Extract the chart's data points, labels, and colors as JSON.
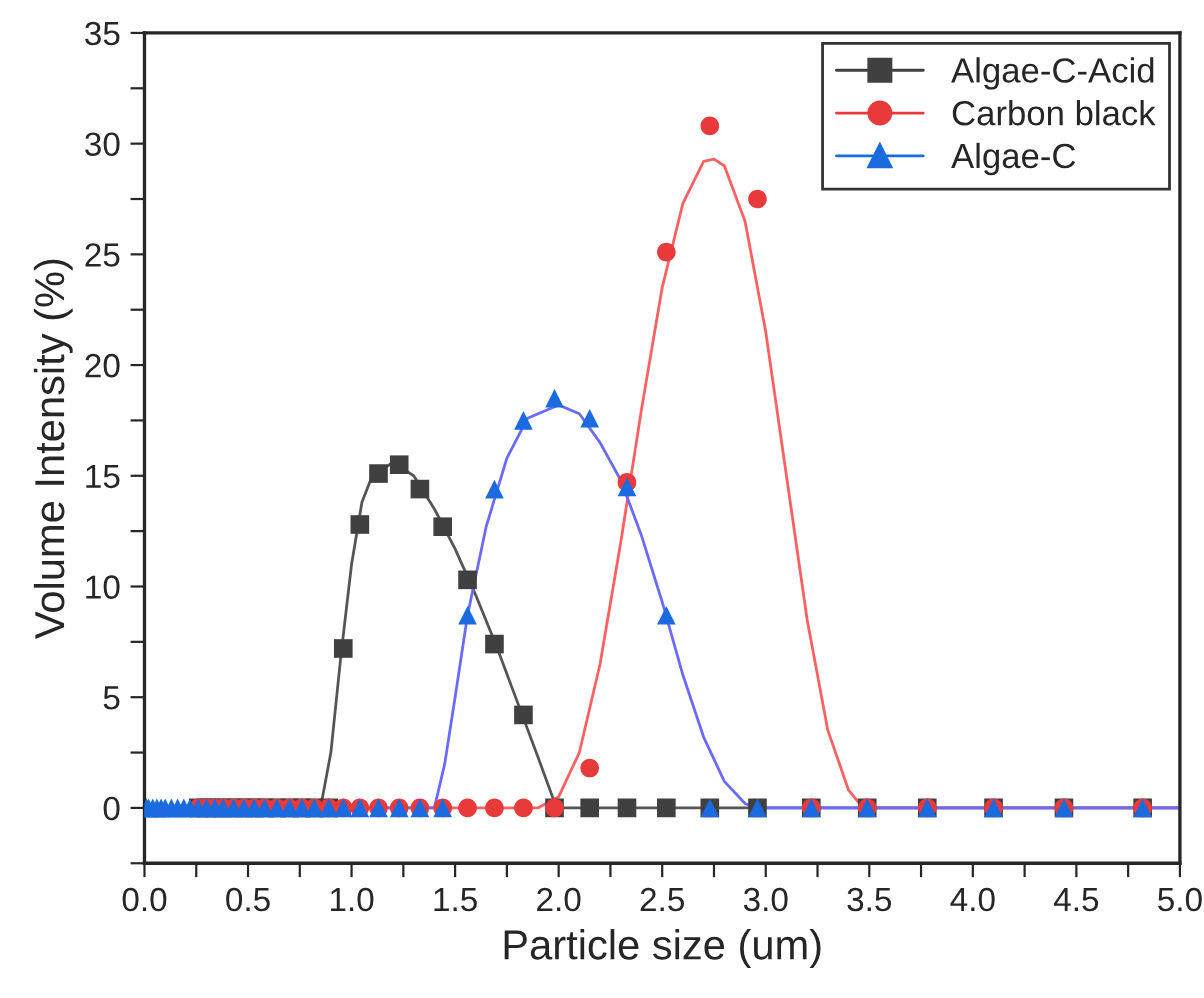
{
  "chart_data": {
    "type": "scatter",
    "xlabel": "Particle size (um)",
    "ylabel": "Volume Intensity (%)",
    "xlim": [
      0,
      5
    ],
    "ylim": [
      -2.5,
      35
    ],
    "xticks": [
      {
        "value": 0,
        "label": "0.0"
      },
      {
        "value": 0.25,
        "label": null
      },
      {
        "value": 0.5,
        "label": "0.5"
      },
      {
        "value": 0.75,
        "label": null
      },
      {
        "value": 1,
        "label": "1.0"
      },
      {
        "value": 1.25,
        "label": null
      },
      {
        "value": 1.5,
        "label": "1.5"
      },
      {
        "value": 1.75,
        "label": null
      },
      {
        "value": 2,
        "label": "2.0"
      },
      {
        "value": 2.25,
        "label": null
      },
      {
        "value": 2.5,
        "label": "2.5"
      },
      {
        "value": 2.75,
        "label": null
      },
      {
        "value": 3,
        "label": "3.0"
      },
      {
        "value": 3.25,
        "label": null
      },
      {
        "value": 3.5,
        "label": "3.5"
      },
      {
        "value": 3.75,
        "label": null
      },
      {
        "value": 4,
        "label": "4.0"
      },
      {
        "value": 4.25,
        "label": null
      },
      {
        "value": 4.5,
        "label": "4.5"
      },
      {
        "value": 4.75,
        "label": null
      },
      {
        "value": 5,
        "label": "5.0"
      }
    ],
    "yticks": [
      {
        "value": -2.5,
        "label": null
      },
      0,
      {
        "value": 2.5,
        "label": null
      },
      5,
      {
        "value": 7.5,
        "label": null
      },
      10,
      {
        "value": 12.5,
        "label": null
      },
      15,
      {
        "value": 17.5,
        "label": null
      },
      20,
      {
        "value": 22.5,
        "label": null
      },
      25,
      {
        "value": 27.5,
        "label": null
      },
      30,
      {
        "value": 32.5,
        "label": null
      },
      35
    ],
    "grid": false,
    "legend": "top right",
    "series": [
      {
        "type": "line",
        "color": "#555555",
        "x": [
          0,
          0.85,
          0.9,
          0.95,
          1.0,
          1.05,
          1.1,
          1.2,
          1.3,
          1.4,
          1.5,
          1.6,
          1.7,
          1.8,
          1.9,
          1.97,
          2.0,
          5.0
        ],
        "values": [
          0,
          0,
          2.5,
          7,
          11,
          13.8,
          15.0,
          15.6,
          15.0,
          13.5,
          11.7,
          9.6,
          7.3,
          4.8,
          2.3,
          0.5,
          0,
          0
        ]
      },
      {
        "type": "line",
        "color": "#ff6060",
        "x": [
          0,
          1.9,
          2.0,
          2.1,
          2.2,
          2.3,
          2.4,
          2.5,
          2.6,
          2.7,
          2.75,
          2.8,
          2.9,
          3.0,
          3.1,
          3.2,
          3.3,
          3.4,
          3.47,
          5.0
        ],
        "values": [
          0,
          0,
          0.5,
          2.5,
          6.5,
          12,
          18,
          23.5,
          27.3,
          29.2,
          29.3,
          29.0,
          26.5,
          21.5,
          15,
          8.5,
          3.5,
          0.8,
          0,
          0
        ]
      },
      {
        "type": "line",
        "color": "#6a6aff",
        "x": [
          0,
          1.4,
          1.45,
          1.5,
          1.56,
          1.65,
          1.75,
          1.85,
          2.0,
          2.1,
          2.2,
          2.3,
          2.4,
          2.5,
          2.6,
          2.7,
          2.8,
          2.9,
          2.95,
          5.0
        ],
        "values": [
          0,
          0,
          2,
          5,
          8.7,
          12.7,
          15.8,
          17.6,
          18.2,
          17.8,
          16.5,
          14.8,
          12.3,
          9.3,
          6.0,
          3.2,
          1.2,
          0.2,
          0,
          0
        ]
      },
      {
        "name": "Algae-C-Acid",
        "color": "#404040",
        "marker": "square",
        "x": [
          0.26,
          0.3,
          0.34,
          0.38,
          0.43,
          0.48,
          0.53,
          0.58,
          0.64,
          0.7,
          0.76,
          0.82,
          0.89,
          0.96,
          1.04,
          1.13,
          1.23,
          1.33,
          1.44,
          1.56,
          1.69,
          1.83,
          1.98,
          2.15,
          2.33,
          2.52,
          2.73,
          2.96,
          3.22,
          3.49,
          3.78,
          4.1,
          4.44,
          4.82
        ],
        "values": [
          0,
          0,
          0,
          0,
          0,
          0,
          0,
          0,
          0,
          0,
          0,
          0,
          0,
          7.2,
          12.8,
          15.1,
          15.5,
          14.4,
          12.7,
          10.3,
          7.4,
          4.2,
          0,
          0,
          0,
          0,
          0,
          0,
          0,
          0,
          0,
          0,
          0,
          0
        ]
      },
      {
        "name": "Carbon black",
        "color": "#e83a3a",
        "marker": "circle",
        "x": [
          0.26,
          0.3,
          0.34,
          0.38,
          0.43,
          0.48,
          0.53,
          0.58,
          0.64,
          0.7,
          0.76,
          0.82,
          0.89,
          0.96,
          1.04,
          1.13,
          1.23,
          1.33,
          1.44,
          1.56,
          1.69,
          1.83,
          1.98,
          2.15,
          2.33,
          2.52,
          2.73,
          2.96,
          3.22,
          3.49,
          3.78,
          4.1,
          4.44,
          4.82
        ],
        "values": [
          0,
          0,
          0,
          0,
          0,
          0,
          0,
          0,
          0,
          0,
          0,
          0,
          0,
          0,
          0,
          0,
          0,
          0,
          0,
          0,
          0,
          0,
          0,
          1.8,
          14.7,
          25.1,
          30.8,
          27.5,
          0,
          0,
          0,
          0,
          0,
          0
        ]
      },
      {
        "name": "Algae-C",
        "color": "#1a6ae0",
        "marker": "triangle",
        "x": [
          0.01,
          0.02,
          0.04,
          0.06,
          0.08,
          0.1,
          0.13,
          0.16,
          0.19,
          0.22,
          0.26,
          0.3,
          0.34,
          0.38,
          0.43,
          0.48,
          0.53,
          0.58,
          0.64,
          0.7,
          0.76,
          0.82,
          0.89,
          0.96,
          1.04,
          1.13,
          1.23,
          1.33,
          1.44,
          1.56,
          1.69,
          1.83,
          1.98,
          2.15,
          2.33,
          2.52,
          2.73,
          2.96,
          3.22,
          3.49,
          3.78,
          4.1,
          4.44,
          4.82
        ],
        "values": [
          0,
          0,
          0,
          0,
          0,
          0,
          0,
          0,
          0,
          0,
          0,
          0,
          0,
          0,
          0,
          0,
          0,
          0,
          0,
          0,
          0,
          0,
          0,
          0,
          0,
          0,
          0,
          0,
          0,
          8.7,
          14.4,
          17.5,
          18.5,
          17.6,
          14.5,
          8.7,
          0,
          0,
          0,
          0,
          0,
          0,
          0,
          0
        ]
      }
    ]
  }
}
